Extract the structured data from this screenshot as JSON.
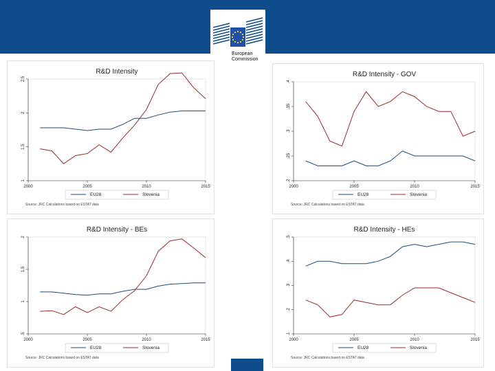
{
  "header": {
    "logo_text": "European\nCommission",
    "colors": {
      "band": "#0f4c8c",
      "flag": "#1f4fa8",
      "stars": "#ffd617"
    }
  },
  "series_colors": {
    "EU28": "#1a4a7c",
    "Slovenia": "#9c2a2a"
  },
  "chart_data": [
    {
      "type": "line",
      "title": "R&D Intensity",
      "x": [
        2001,
        2002,
        2003,
        2004,
        2005,
        2006,
        2007,
        2008,
        2009,
        2010,
        2011,
        2012,
        2013,
        2014,
        2015
      ],
      "series": [
        {
          "name": "EU28",
          "values": [
            1.78,
            1.78,
            1.78,
            1.76,
            1.74,
            1.76,
            1.76,
            1.83,
            1.92,
            1.92,
            1.97,
            2.01,
            2.03,
            2.03,
            2.03
          ]
        },
        {
          "name": "Slovenia",
          "values": [
            1.47,
            1.44,
            1.25,
            1.37,
            1.4,
            1.53,
            1.42,
            1.63,
            1.82,
            2.05,
            2.42,
            2.58,
            2.59,
            2.37,
            2.21
          ]
        }
      ],
      "xlim": [
        2000,
        2015
      ],
      "ylim": [
        1,
        2.5
      ],
      "xticks": [
        2000,
        2005,
        2010,
        2015
      ],
      "yticks": [
        1,
        1.5,
        2,
        2.5
      ],
      "xtick_labels": [
        "2000",
        "2005",
        "2010",
        "2015"
      ],
      "ytick_labels": [
        "1",
        "1.5",
        "2",
        "2.5"
      ],
      "legend": [
        "EU28",
        "Slovenia"
      ],
      "source": "Source: JRC Calculations based on ESTAT data"
    },
    {
      "type": "line",
      "title": "R&D Intensity - GOV",
      "x": [
        2001,
        2002,
        2003,
        2004,
        2005,
        2006,
        2007,
        2008,
        2009,
        2010,
        2011,
        2012,
        2013,
        2014,
        2015
      ],
      "series": [
        {
          "name": "EU28",
          "values": [
            0.24,
            0.23,
            0.23,
            0.23,
            0.24,
            0.23,
            0.23,
            0.24,
            0.26,
            0.25,
            0.25,
            0.25,
            0.25,
            0.25,
            0.24
          ]
        },
        {
          "name": "Slovenia",
          "values": [
            0.36,
            0.33,
            0.28,
            0.27,
            0.34,
            0.38,
            0.35,
            0.36,
            0.38,
            0.37,
            0.35,
            0.34,
            0.34,
            0.29,
            0.3
          ]
        }
      ],
      "xlim": [
        2000,
        2015
      ],
      "ylim": [
        0.2,
        0.4
      ],
      "xticks": [
        2000,
        2005,
        2010,
        2015
      ],
      "yticks": [
        0.2,
        0.25,
        0.3,
        0.35,
        0.4
      ],
      "xtick_labels": [
        "2000",
        "2005",
        "2010",
        "2015"
      ],
      "ytick_labels": [
        ".2",
        ".25",
        ".3",
        ".35",
        ".4"
      ],
      "legend": [
        "EU28",
        "Slovenia"
      ],
      "source": "Source: JRC Calculations based on ESTAT data"
    },
    {
      "type": "line",
      "title": "R&D Intensity - BEs",
      "x": [
        2001,
        2002,
        2003,
        2004,
        2005,
        2006,
        2007,
        2008,
        2009,
        2010,
        2011,
        2012,
        2013,
        2014,
        2015
      ],
      "series": [
        {
          "name": "EU28",
          "values": [
            1.15,
            1.15,
            1.13,
            1.11,
            1.1,
            1.12,
            1.12,
            1.16,
            1.19,
            1.19,
            1.24,
            1.27,
            1.28,
            1.29,
            1.29
          ]
        },
        {
          "name": "Slovenia",
          "values": [
            0.85,
            0.86,
            0.8,
            0.92,
            0.83,
            0.92,
            0.85,
            1.03,
            1.17,
            1.4,
            1.78,
            1.94,
            1.97,
            1.83,
            1.68
          ]
        }
      ],
      "xlim": [
        2000,
        2015
      ],
      "ylim": [
        0.5,
        2
      ],
      "xticks": [
        2000,
        2005,
        2010,
        2015
      ],
      "yticks": [
        0.5,
        1,
        1.5,
        2
      ],
      "xtick_labels": [
        "2000",
        "2005",
        "2010",
        "2015"
      ],
      "ytick_labels": [
        ".5",
        "1",
        "1.5",
        "2"
      ],
      "legend": [
        "EU28",
        "Slovenia"
      ],
      "source": "Source: JRC Calculations based on ESTAT data"
    },
    {
      "type": "line",
      "title": "R&D Intensity - HEs",
      "x": [
        2001,
        2002,
        2003,
        2004,
        2005,
        2006,
        2007,
        2008,
        2009,
        2010,
        2011,
        2012,
        2013,
        2014,
        2015
      ],
      "series": [
        {
          "name": "EU28",
          "values": [
            0.38,
            0.4,
            0.4,
            0.39,
            0.39,
            0.39,
            0.4,
            0.42,
            0.46,
            0.47,
            0.46,
            0.47,
            0.48,
            0.48,
            0.47
          ]
        },
        {
          "name": "Slovenia",
          "values": [
            0.24,
            0.22,
            0.17,
            0.18,
            0.24,
            0.23,
            0.22,
            0.22,
            0.26,
            0.29,
            0.29,
            0.29,
            0.27,
            0.25,
            0.23
          ]
        }
      ],
      "xlim": [
        2000,
        2015
      ],
      "ylim": [
        0.1,
        0.5
      ],
      "xticks": [
        2000,
        2005,
        2010,
        2015
      ],
      "yticks": [
        0.1,
        0.2,
        0.3,
        0.4,
        0.5
      ],
      "xtick_labels": [
        "2000",
        "2005",
        "2010",
        "2015"
      ],
      "ytick_labels": [
        ".1",
        ".2",
        ".3",
        ".4",
        ".5"
      ],
      "legend": [
        "EU28",
        "Slovenia"
      ],
      "source": "Source: JRC Calculations based on ESTAT data"
    }
  ]
}
